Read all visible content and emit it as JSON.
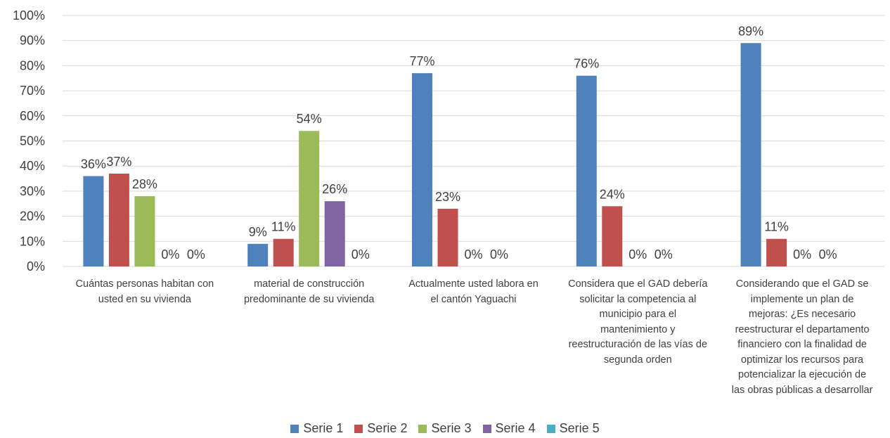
{
  "chart_data": {
    "type": "bar",
    "categories": [
      "Cuántas personas habitan con\nusted en su vivienda",
      "material de construcción\npredominante de su vivienda",
      "Actualmente usted labora en\nel cantón Yaguachi",
      "Considera que el GAD debería\nsolicitar la competencia al\nmunicipio para el\nmantenimiento y\nreestructuración de las vías de\nsegunda orden",
      "Considerando que el GAD se\nimplemente un plan de\nmejoras: ¿Es necesario\nreestructurar el departamento\nfinanciero con la finalidad de\noptimizar los recursos para\npotencializar la ejecución de\nlas obras públicas a desarrollar"
    ],
    "series": [
      {
        "name": "Serie 1",
        "color": "#4F81BD",
        "values": [
          36,
          9,
          77,
          76,
          89
        ],
        "labels": [
          "36%",
          "9%",
          "77%",
          "76%",
          "89%"
        ]
      },
      {
        "name": "Serie 2",
        "color": "#C0504D",
        "values": [
          37,
          11,
          23,
          24,
          11
        ],
        "labels": [
          "37%",
          "11%",
          "23%",
          "24%",
          "11%"
        ]
      },
      {
        "name": "Serie 3",
        "color": "#9BBB59",
        "values": [
          28,
          54,
          0,
          0,
          0
        ],
        "labels": [
          "28%",
          "54%",
          "0%",
          "0%",
          "0%"
        ]
      },
      {
        "name": "Serie 4",
        "color": "#8064A2",
        "values": [
          0,
          26,
          0,
          0,
          0
        ],
        "labels": [
          "0%",
          "26%",
          "0%",
          "0%",
          "0%"
        ]
      },
      {
        "name": "Serie 5",
        "color": "#4BACC6",
        "values": [
          0,
          0,
          0,
          0,
          0
        ],
        "labels": [
          "0%",
          "0%",
          "",
          "",
          ""
        ]
      }
    ],
    "yticks": [
      "0%",
      "10%",
      "20%",
      "30%",
      "40%",
      "50%",
      "60%",
      "70%",
      "80%",
      "90%",
      "100%"
    ],
    "ylim": [
      0,
      100
    ],
    "grid": true,
    "legend_position": "bottom"
  }
}
